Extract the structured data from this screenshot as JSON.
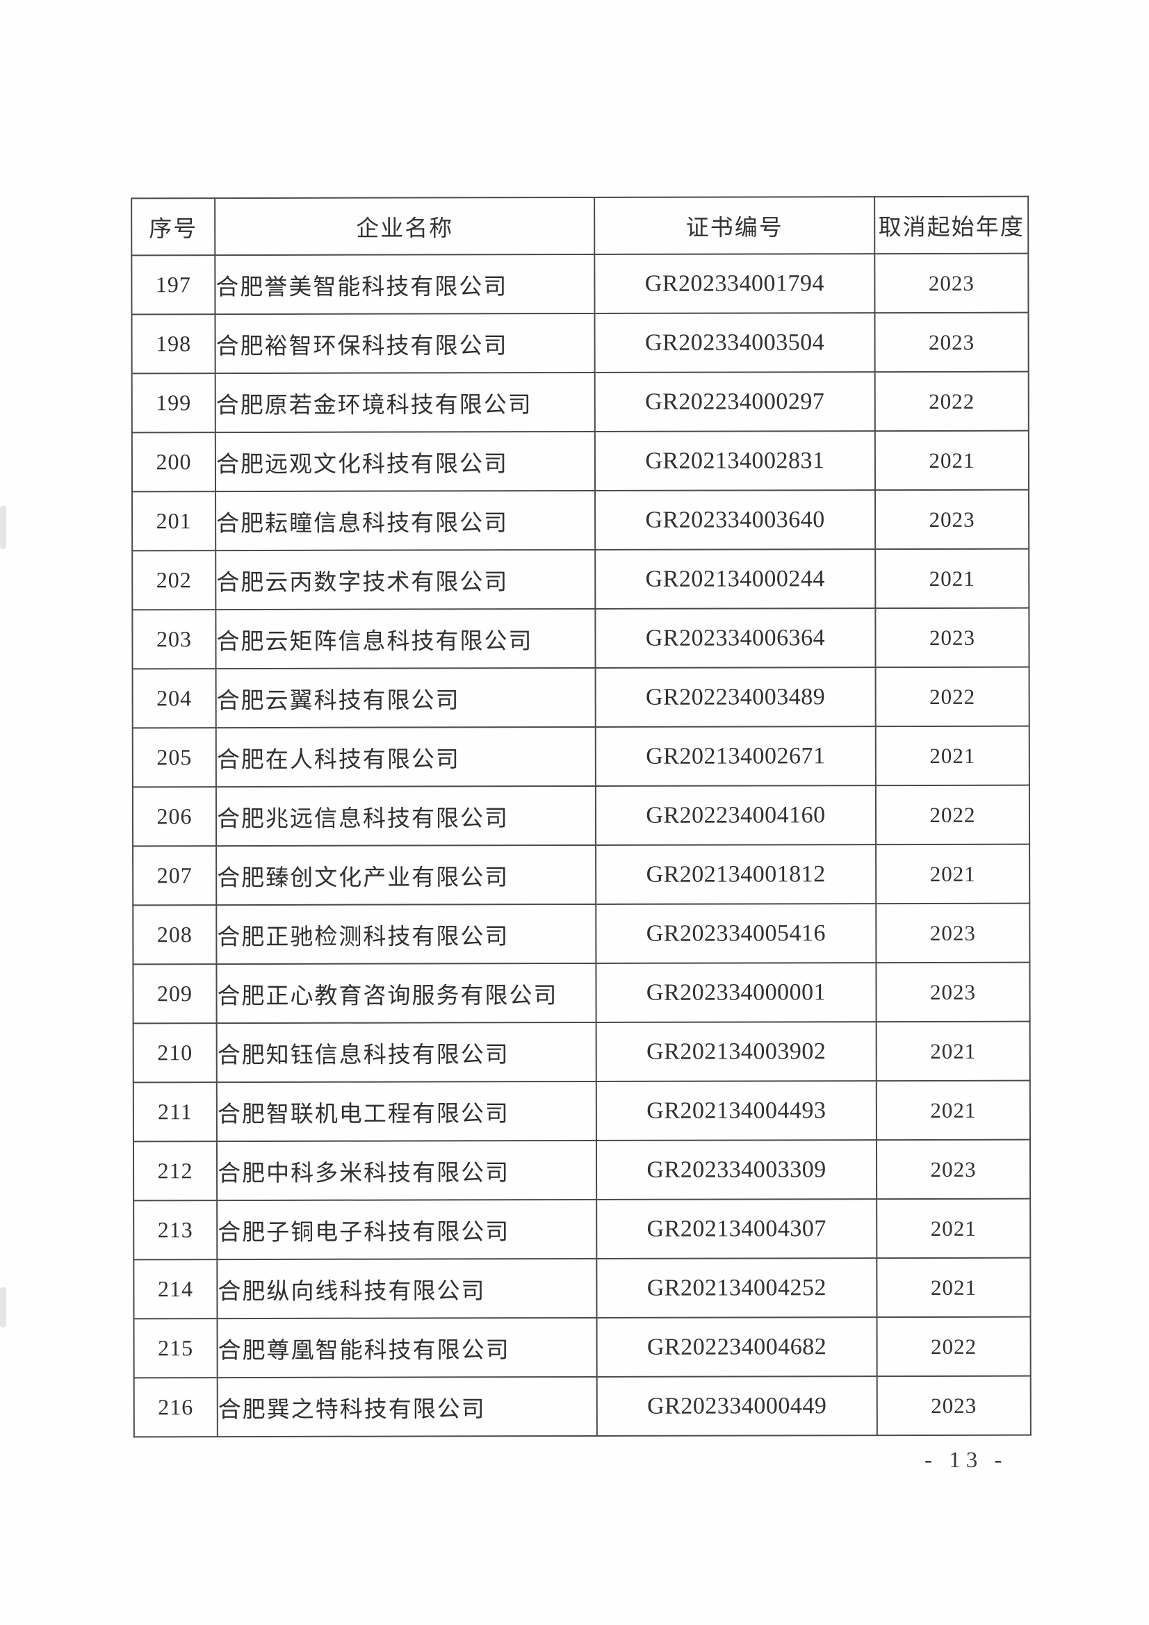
{
  "page": {
    "number_label": "- 13 -"
  },
  "table": {
    "headers": [
      "序号",
      "企业名称",
      "证书编号",
      "取消起始年度"
    ],
    "rows": [
      {
        "no": "197",
        "name": "合肥誉美智能科技有限公司",
        "cert": "GR202334001794",
        "year": "2023"
      },
      {
        "no": "198",
        "name": "合肥裕智环保科技有限公司",
        "cert": "GR202334003504",
        "year": "2023"
      },
      {
        "no": "199",
        "name": "合肥原若金环境科技有限公司",
        "cert": "GR202234000297",
        "year": "2022"
      },
      {
        "no": "200",
        "name": "合肥远观文化科技有限公司",
        "cert": "GR202134002831",
        "year": "2021"
      },
      {
        "no": "201",
        "name": "合肥耘瞳信息科技有限公司",
        "cert": "GR202334003640",
        "year": "2023"
      },
      {
        "no": "202",
        "name": "合肥云丙数字技术有限公司",
        "cert": "GR202134000244",
        "year": "2021"
      },
      {
        "no": "203",
        "name": "合肥云矩阵信息科技有限公司",
        "cert": "GR202334006364",
        "year": "2023"
      },
      {
        "no": "204",
        "name": "合肥云翼科技有限公司",
        "cert": "GR202234003489",
        "year": "2022"
      },
      {
        "no": "205",
        "name": "合肥在人科技有限公司",
        "cert": "GR202134002671",
        "year": "2021"
      },
      {
        "no": "206",
        "name": "合肥兆远信息科技有限公司",
        "cert": "GR202234004160",
        "year": "2022"
      },
      {
        "no": "207",
        "name": "合肥臻创文化产业有限公司",
        "cert": "GR202134001812",
        "year": "2021"
      },
      {
        "no": "208",
        "name": "合肥正驰检测科技有限公司",
        "cert": "GR202334005416",
        "year": "2023"
      },
      {
        "no": "209",
        "name": "合肥正心教育咨询服务有限公司",
        "cert": "GR202334000001",
        "year": "2023"
      },
      {
        "no": "210",
        "name": "合肥知钰信息科技有限公司",
        "cert": "GR202134003902",
        "year": "2021"
      },
      {
        "no": "211",
        "name": "合肥智联机电工程有限公司",
        "cert": "GR202134004493",
        "year": "2021"
      },
      {
        "no": "212",
        "name": "合肥中科多米科技有限公司",
        "cert": "GR202334003309",
        "year": "2023"
      },
      {
        "no": "213",
        "name": "合肥子铜电子科技有限公司",
        "cert": "GR202134004307",
        "year": "2021"
      },
      {
        "no": "214",
        "name": "合肥纵向线科技有限公司",
        "cert": "GR202134004252",
        "year": "2021"
      },
      {
        "no": "215",
        "name": "合肥尊凰智能科技有限公司",
        "cert": "GR202234004682",
        "year": "2022"
      },
      {
        "no": "216",
        "name": "合肥巽之特科技有限公司",
        "cert": "GR202334000449",
        "year": "2023"
      }
    ]
  }
}
